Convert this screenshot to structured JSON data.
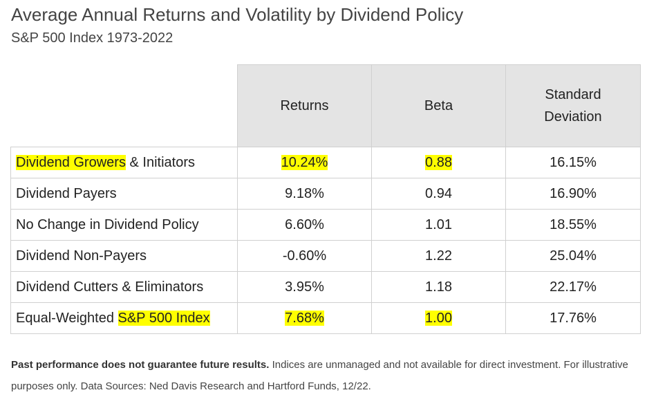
{
  "title": "Average Annual Returns and Volatility by Dividend Policy",
  "subtitle": "S&P 500 Index 1973-2022",
  "chart_data": {
    "type": "table",
    "columns": [
      "Returns",
      "Beta",
      "Standard Deviation"
    ],
    "rows": [
      {
        "label_parts": [
          {
            "text": "Dividend Growers",
            "highlight": true
          },
          {
            "text": " & Initiators",
            "highlight": false
          }
        ],
        "returns": "10.24%",
        "beta": "0.88",
        "std_dev": "16.15%",
        "highlight_returns": true,
        "highlight_beta": true
      },
      {
        "label_parts": [
          {
            "text": "Dividend Payers",
            "highlight": false
          }
        ],
        "returns": "9.18%",
        "beta": "0.94",
        "std_dev": "16.90%",
        "highlight_returns": false,
        "highlight_beta": false
      },
      {
        "label_parts": [
          {
            "text": "No Change in Dividend Policy",
            "highlight": false
          }
        ],
        "returns": "6.60%",
        "beta": "1.01",
        "std_dev": "18.55%",
        "highlight_returns": false,
        "highlight_beta": false
      },
      {
        "label_parts": [
          {
            "text": "Dividend Non-Payers",
            "highlight": false
          }
        ],
        "returns": "-0.60%",
        "beta": "1.22",
        "std_dev": "25.04%",
        "highlight_returns": false,
        "highlight_beta": false
      },
      {
        "label_parts": [
          {
            "text": "Dividend Cutters & Eliminators",
            "highlight": false
          }
        ],
        "returns": "3.95%",
        "beta": "1.18",
        "std_dev": "22.17%",
        "highlight_returns": false,
        "highlight_beta": false
      },
      {
        "label_parts": [
          {
            "text": "Equal-Weighted ",
            "highlight": false
          },
          {
            "text": "S&P 500 Index",
            "highlight": true
          }
        ],
        "returns": "7.68%",
        "beta": "1.00",
        "std_dev": "17.76%",
        "highlight_returns": true,
        "highlight_beta": true
      }
    ]
  },
  "header": {
    "returns": "Returns",
    "beta": "Beta",
    "std_dev_line1": "Standard",
    "std_dev_line2": "Deviation"
  },
  "footnote": {
    "bold": "Past performance does not guarantee future results.",
    "text": " Indices are unmanaged and not available for direct investment. For illustrative purposes only. Data Sources: Ned Davis Research and Hartford Funds, 12/22."
  },
  "colors": {
    "highlight": "#ffff00",
    "header_bg": "#e4e4e4",
    "border": "#d0d0d0"
  }
}
